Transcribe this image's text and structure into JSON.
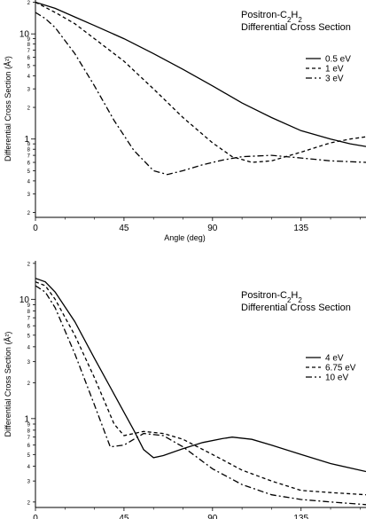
{
  "chart_data": [
    {
      "type": "line",
      "title_line1": "Positron-C",
      "title_sub": "2",
      "title_mid": "H",
      "title_sub2": "2",
      "title_line2": "Differential Cross Section",
      "xlabel": "Angle (deg)",
      "ylabel": "Differential Cross Section (Å²)",
      "xlim": [
        0,
        168
      ],
      "ylim": [
        0.18,
        21
      ],
      "yscale": "log",
      "xticks": [
        "0",
        "45",
        "90",
        "135"
      ],
      "yticks": [
        "1",
        "10"
      ],
      "legend_position": "right",
      "series": [
        {
          "name": "0.5 eV",
          "dash": "solid",
          "x": [
            0,
            10,
            20,
            30,
            45,
            60,
            75,
            90,
            105,
            120,
            135,
            150,
            160,
            168
          ],
          "y": [
            20,
            17.5,
            14.5,
            12,
            9,
            6.5,
            4.6,
            3.2,
            2.2,
            1.6,
            1.2,
            1.0,
            0.9,
            0.85
          ]
        },
        {
          "name": "1 eV",
          "dash": "dashed",
          "x": [
            0,
            10,
            20,
            30,
            45,
            60,
            75,
            90,
            100,
            110,
            120,
            135,
            150,
            160,
            168
          ],
          "y": [
            20,
            16,
            12.5,
            9,
            5.5,
            3,
            1.6,
            0.92,
            0.68,
            0.6,
            0.62,
            0.75,
            0.92,
            1.0,
            1.05
          ]
        },
        {
          "name": "3 eV",
          "dash": "dashdot",
          "x": [
            0,
            5,
            10,
            20,
            30,
            40,
            50,
            60,
            67,
            75,
            85,
            95,
            105,
            120,
            135,
            150,
            168
          ],
          "y": [
            16,
            14,
            11.5,
            6.5,
            3.2,
            1.5,
            0.78,
            0.5,
            0.46,
            0.5,
            0.57,
            0.63,
            0.68,
            0.7,
            0.66,
            0.62,
            0.6
          ]
        }
      ]
    },
    {
      "type": "line",
      "title_line1": "Positron-C",
      "title_sub": "2",
      "title_mid": "H",
      "title_sub2": "2",
      "title_line2": "Differential Cross Section",
      "xlabel": "Angle (deg)",
      "ylabel": "Differential Cross Section (Å²)",
      "xlim": [
        0,
        168
      ],
      "ylim": [
        0.18,
        21
      ],
      "yscale": "log",
      "xticks": [
        "0",
        "45",
        "90",
        "135"
      ],
      "yticks": [
        "1",
        "10"
      ],
      "legend_position": "right",
      "series": [
        {
          "name": "4 eV",
          "dash": "solid",
          "x": [
            0,
            5,
            10,
            20,
            30,
            40,
            50,
            55,
            60,
            65,
            75,
            85,
            95,
            100,
            110,
            120,
            135,
            150,
            168
          ],
          "y": [
            15,
            14,
            11.5,
            6.5,
            3.2,
            1.6,
            0.8,
            0.55,
            0.47,
            0.49,
            0.56,
            0.63,
            0.68,
            0.7,
            0.67,
            0.6,
            0.5,
            0.42,
            0.36
          ]
        },
        {
          "name": "6.75 eV",
          "dash": "dashed",
          "x": [
            0,
            5,
            10,
            20,
            30,
            40,
            45,
            55,
            65,
            75,
            90,
            105,
            120,
            135,
            150,
            168
          ],
          "y": [
            14,
            13,
            10,
            5,
            2.2,
            0.9,
            0.72,
            0.78,
            0.75,
            0.67,
            0.5,
            0.37,
            0.3,
            0.25,
            0.24,
            0.23
          ]
        },
        {
          "name": "10 eV",
          "dash": "dashdot",
          "x": [
            0,
            5,
            10,
            20,
            30,
            38,
            45,
            55,
            65,
            75,
            90,
            105,
            120,
            135,
            150,
            168
          ],
          "y": [
            13,
            11.5,
            8.5,
            3.5,
            1.3,
            0.58,
            0.6,
            0.75,
            0.72,
            0.58,
            0.38,
            0.28,
            0.23,
            0.21,
            0.2,
            0.19
          ]
        }
      ]
    }
  ]
}
